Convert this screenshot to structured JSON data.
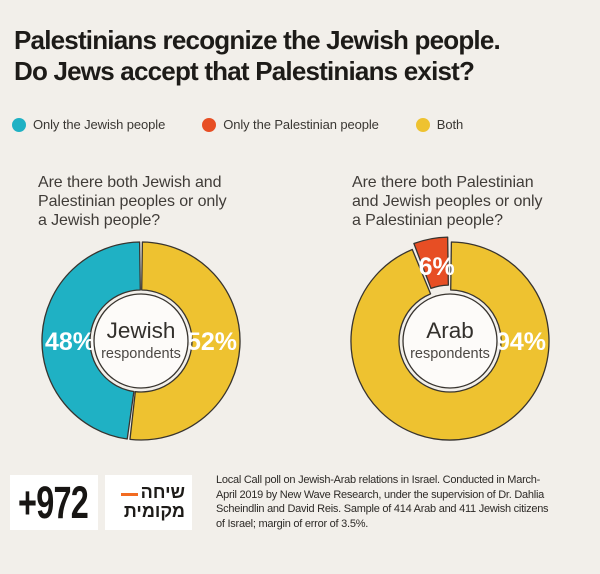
{
  "header": {
    "title_line1": "Palestinians recognize the Jewish people.",
    "title_line2": "Do Jews accept that Palestinians exist?"
  },
  "legend": {
    "items": [
      {
        "label": "Only the Jewish people",
        "color": "#1fb1c4"
      },
      {
        "label": "Only the Palestinian people",
        "color": "#e74e24"
      },
      {
        "label": "Both",
        "color": "#eec230"
      }
    ]
  },
  "chart_data": [
    {
      "type": "pie",
      "variant": "donut",
      "question_lines": [
        "Are there both Jewish and",
        "Palestinian peoples or only",
        "a Jewish people?"
      ],
      "center_label_line1": "Jewish",
      "center_label_line2": "respondents",
      "unit": "%",
      "start_angle_deg": 0,
      "slices": [
        {
          "label": "Both",
          "value": 52,
          "pct_label": "52%",
          "color": "#eec230",
          "label_angle": 90
        },
        {
          "label": "Only the Jewish people",
          "value": 48,
          "pct_label": "48%",
          "color": "#1fb1c4",
          "label_angle": 270
        }
      ]
    },
    {
      "type": "pie",
      "variant": "donut",
      "question_lines": [
        "Are there both Palestinian",
        "and Jewish peoples or only",
        "a Palestinian people?"
      ],
      "center_label_line1": "Arab",
      "center_label_line2": "respondents",
      "unit": "%",
      "start_angle_deg": 0,
      "slices": [
        {
          "label": "Both",
          "value": 94,
          "pct_label": "94%",
          "color": "#eec230",
          "label_angle": 90
        },
        {
          "label": "Only the Palestinian people",
          "value": 6,
          "pct_label": "6%",
          "color": "#e74e24",
          "label_angle": 350,
          "explode": 5
        }
      ]
    }
  ],
  "footer": {
    "logo_972": "+972",
    "local_call": {
      "line1": "שיחה",
      "line2": "מקומית",
      "accent_color": "#f26b21"
    },
    "source_lines": [
      "Local Call poll on Jewish-Arab relations in Israel. Conducted in March-",
      "April 2019 by New Wave Research, under the supervision of Dr. Dahlia",
      "Scheindlin and David Reis. Sample of 414 Arab and 411 Jewish citizens",
      "of Israel; margin of error of 3.5%."
    ]
  },
  "colors": {
    "background": "#f2efea",
    "slice_outline": "#38342f",
    "center_circle_fill": "#fdfbf9",
    "pct_label_text": "#ffffff",
    "center_text_main": "#33302c",
    "center_text_sub": "#4c4844"
  }
}
